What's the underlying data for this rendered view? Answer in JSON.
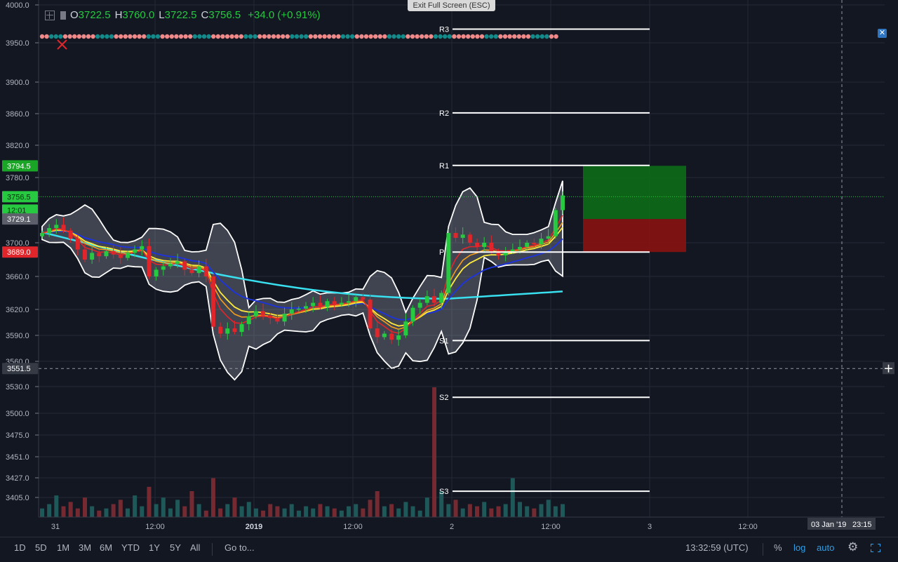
{
  "legend": {
    "open_key": "O",
    "open": "3722.5",
    "high_key": "H",
    "high": "3760.0",
    "low_key": "L",
    "low": "3722.5",
    "close_key": "C",
    "close": "3756.5",
    "change": "+34.0 (+0.91%)"
  },
  "exit_fullscreen": "Exit Full Screen (ESC)",
  "colors": {
    "background": "#131722",
    "up_candle": "#26c940",
    "down_candle": "#e0262a",
    "ma_long": "#38e0f0",
    "ma_mid": "#1f34d6",
    "ma_fast1": "#ffeb3b",
    "ma_fast2": "#f59c1a",
    "ma_fast3": "#e0262a",
    "bollinger": "#ffffff",
    "pivot_lines": "#ffffff",
    "target_zone": "#0d6b16",
    "stop_zone": "#8a1212"
  },
  "bottom_bar": {
    "timeframes": [
      "1D",
      "5D",
      "1M",
      "3M",
      "6M",
      "YTD",
      "1Y",
      "5Y",
      "All"
    ],
    "goto": "Go to...",
    "clock": "13:32:59 (UTC)",
    "percent": "%",
    "log": "log",
    "auto": "auto",
    "settings_icon": "gear-icon",
    "fullscreen_icon": "fullscreen-icon"
  },
  "chart_data": {
    "type": "candlestick",
    "title": "",
    "price_axis_ticks": [
      4000.0,
      3950.0,
      3900.0,
      3860.0,
      3820.0,
      3780.0,
      3700.0,
      3660.0,
      3620.0,
      3590.0,
      3560.0,
      3530.0,
      3500.0,
      3475.0,
      3451.0,
      3427.0,
      3405.0
    ],
    "price_axis_tick_labels": [
      "4000.0",
      "3950.0",
      "3900.0",
      "3860.0",
      "3820.0",
      "3780.0",
      "3700.0",
      "3660.0",
      "3620.0",
      "3590.0",
      "3560.0",
      "3530.0",
      "3500.0",
      "3475.0",
      "3451.0",
      "3427.0",
      "3405.0"
    ],
    "time_axis_labels": [
      "31",
      "12:00",
      "2019",
      "12:00",
      "2",
      "12:00",
      "3",
      "12:00"
    ],
    "price_badges": [
      {
        "label": "3794.5",
        "color": "#1aa526"
      },
      {
        "label": "3756.5",
        "color": "#26c940"
      },
      {
        "label": "12:01",
        "color": "#26c940"
      },
      {
        "label": "3729.1",
        "color": "#5d606b"
      },
      {
        "label": "3689.0",
        "color": "#e0262a"
      },
      {
        "label": "3551.5",
        "color": "#363a45"
      }
    ],
    "crosshair": {
      "price": "3551.5",
      "date_label": "03 Jan '19",
      "time_label": "23:15"
    },
    "current_price": 3756.5,
    "pivots": [
      {
        "name": "R3",
        "value": 3968
      },
      {
        "name": "R2",
        "value": 3861
      },
      {
        "name": "R1",
        "value": 3795
      },
      {
        "name": "P",
        "value": 3689
      },
      {
        "name": "S1",
        "value": 3584
      },
      {
        "name": "S2",
        "value": 3518
      },
      {
        "name": "S3",
        "value": 3412
      }
    ],
    "position": {
      "target": 3794.5,
      "entry": 3729.1,
      "stop": 3689.0
    },
    "price_path": [
      3712,
      3718,
      3722,
      3715,
      3705,
      3692,
      3680,
      3688,
      3684,
      3690,
      3686,
      3682,
      3688,
      3692,
      3696,
      3660,
      3668,
      3672,
      3675,
      3678,
      3668,
      3664,
      3672,
      3660,
      3600,
      3592,
      3598,
      3594,
      3603,
      3612,
      3618,
      3613,
      3610,
      3606,
      3615,
      3620,
      3621,
      3624,
      3628,
      3623,
      3630,
      3626,
      3628,
      3630,
      3635,
      3632,
      3598,
      3588,
      3592,
      3585,
      3590,
      3606,
      3622,
      3628,
      3636,
      3628,
      3640,
      3712,
      3706,
      3710,
      3700,
      3695,
      3700,
      3690,
      3685,
      3690,
      3692,
      3695,
      3700,
      3698,
      3705,
      3708,
      3740,
      3758
    ],
    "volume": [
      4,
      6,
      10,
      5,
      7,
      4,
      9,
      5,
      3,
      4,
      6,
      8,
      4,
      10,
      5,
      14,
      6,
      9,
      4,
      8,
      5,
      12,
      6,
      3,
      18,
      4,
      6,
      9,
      5,
      7,
      4,
      3,
      6,
      5,
      4,
      6,
      3,
      5,
      4,
      6,
      5,
      4,
      3,
      5,
      6,
      4,
      8,
      12,
      5,
      6,
      4,
      7,
      5,
      3,
      9,
      60,
      12,
      6,
      8,
      4,
      6,
      5,
      7,
      4,
      5,
      6,
      18,
      7,
      5,
      4,
      6,
      8,
      5,
      6
    ]
  }
}
